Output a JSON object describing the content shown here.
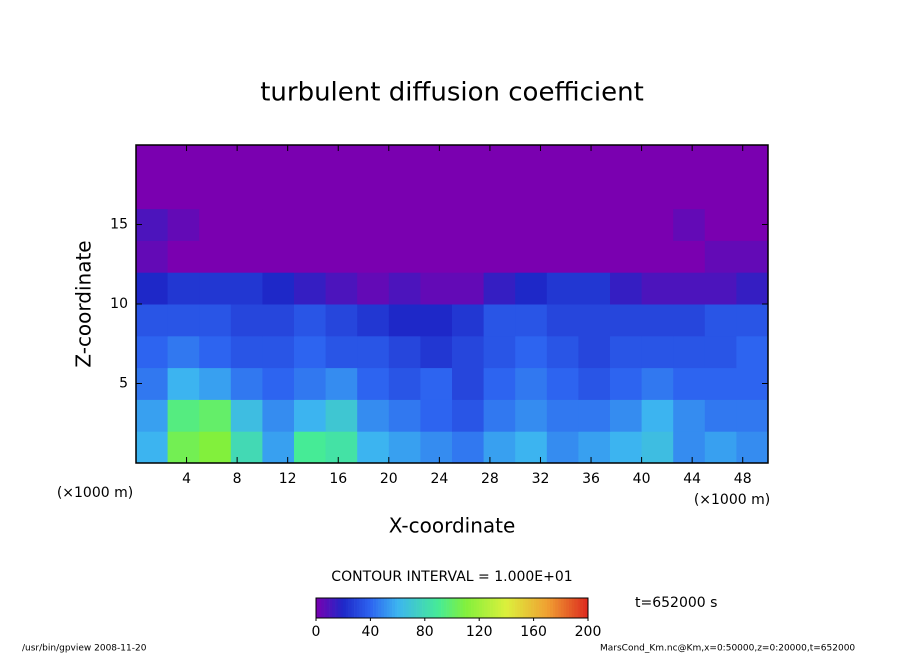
{
  "chart_data": {
    "type": "heatmap",
    "title": "turbulent diffusion coefficient",
    "x_label": "X-coordinate",
    "y_label": "Z-coordinate",
    "x_unit": "(×1000 m)",
    "y_unit": "(×1000 m)",
    "xlim": [
      0,
      50
    ],
    "ylim": [
      0,
      20
    ],
    "xticks": [
      4,
      8,
      12,
      16,
      20,
      24,
      28,
      32,
      36,
      40,
      44,
      48
    ],
    "yticks": [
      5,
      10,
      15
    ],
    "x": [
      1.25,
      3.75,
      6.25,
      8.75,
      11.25,
      13.75,
      16.25,
      18.75,
      21.25,
      23.75,
      26.25,
      28.75,
      31.25,
      33.75,
      36.25,
      38.75,
      41.25,
      43.75,
      46.25,
      48.75
    ],
    "y": [
      1,
      3,
      5,
      7,
      9,
      11,
      13,
      15,
      17,
      19
    ],
    "values": [
      [
        60,
        105,
        110,
        80,
        55,
        90,
        85,
        60,
        55,
        50,
        45,
        55,
        60,
        50,
        55,
        60,
        65,
        50,
        55,
        50
      ],
      [
        55,
        95,
        100,
        65,
        50,
        60,
        70,
        50,
        45,
        40,
        35,
        45,
        50,
        45,
        45,
        50,
        60,
        50,
        45,
        45
      ],
      [
        45,
        60,
        55,
        45,
        40,
        45,
        50,
        40,
        35,
        40,
        30,
        40,
        45,
        40,
        35,
        40,
        45,
        40,
        40,
        40
      ],
      [
        40,
        45,
        40,
        35,
        35,
        40,
        35,
        35,
        30,
        25,
        30,
        35,
        40,
        35,
        30,
        35,
        35,
        35,
        35,
        40
      ],
      [
        35,
        35,
        35,
        30,
        30,
        35,
        30,
        25,
        20,
        20,
        25,
        35,
        35,
        30,
        30,
        30,
        30,
        30,
        35,
        35
      ],
      [
        20,
        25,
        25,
        25,
        20,
        15,
        10,
        5,
        10,
        5,
        5,
        15,
        20,
        25,
        25,
        15,
        10,
        10,
        10,
        15
      ],
      [
        5,
        0,
        0,
        0,
        0,
        0,
        0,
        0,
        0,
        0,
        0,
        0,
        0,
        0,
        0,
        0,
        0,
        0,
        5,
        5
      ],
      [
        10,
        5,
        0,
        0,
        0,
        0,
        0,
        0,
        0,
        0,
        0,
        0,
        0,
        0,
        0,
        0,
        0,
        5,
        0,
        0
      ],
      [
        0,
        0,
        0,
        0,
        0,
        0,
        0,
        0,
        0,
        0,
        0,
        0,
        0,
        0,
        0,
        0,
        0,
        0,
        0,
        0
      ],
      [
        0,
        0,
        0,
        0,
        0,
        0,
        0,
        0,
        0,
        0,
        0,
        0,
        0,
        0,
        0,
        0,
        0,
        0,
        0,
        0
      ]
    ],
    "zlim": [
      0,
      200
    ],
    "colorbar_ticks": [
      0,
      40,
      80,
      120,
      160,
      200
    ],
    "contour_interval": "CONTOUR INTERVAL = 1.000E+01",
    "time_label": "t=652000 s",
    "footer_left": "/usr/bin/gpview   2008-11-20",
    "footer_right": "MarsCond_Km.nc@Km,x=0:50000,z=0:20000,t=652000"
  }
}
